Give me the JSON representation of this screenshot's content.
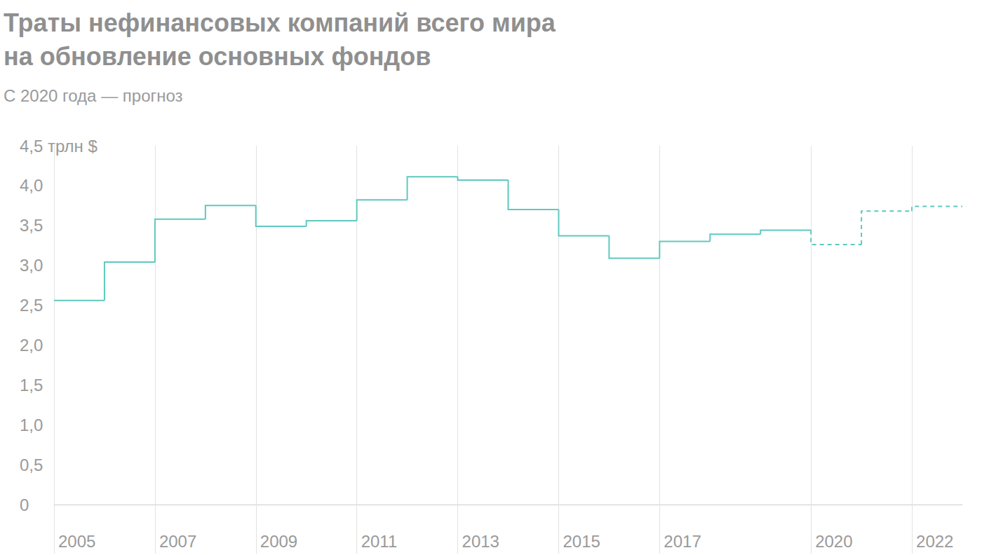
{
  "chart_data": {
    "type": "step",
    "title": "Траты нефинансовых компаний всего мира\nна обновление основных фондов",
    "subtitle": "С 2020 года — прогноз",
    "x": [
      2005,
      2006,
      2007,
      2008,
      2009,
      2010,
      2011,
      2012,
      2013,
      2014,
      2015,
      2016,
      2017,
      2018,
      2019,
      2020,
      2021,
      2022
    ],
    "series": [
      {
        "color": "#5ec9bf",
        "line_style": "solid",
        "values": [
          2.56,
          3.04,
          3.58,
          3.75,
          3.49,
          3.56,
          3.82,
          4.11,
          4.07,
          3.7,
          3.37,
          3.09,
          3.3,
          3.39,
          3.44,
          null,
          null,
          null
        ]
      },
      {
        "color": "#5ec9bf",
        "line_style": "dashed",
        "values": [
          null,
          null,
          null,
          null,
          null,
          null,
          null,
          null,
          null,
          null,
          null,
          null,
          null,
          null,
          null,
          3.26,
          3.68,
          3.74
        ]
      }
    ],
    "xlim": [
      2005,
      2023
    ],
    "xticks": [
      2005,
      2007,
      2009,
      2011,
      2013,
      2015,
      2017,
      2020,
      2022
    ],
    "ylim": [
      0,
      4.5
    ],
    "yticks": [
      0,
      {
        "value": 0.5,
        "label": "0,5"
      },
      {
        "value": 1,
        "label": "1,0"
      },
      {
        "value": 1.5,
        "label": "1,5"
      },
      {
        "value": 2,
        "label": "2,0"
      },
      {
        "value": 2.5,
        "label": "2,5"
      },
      {
        "value": 3,
        "label": "3,0"
      },
      {
        "value": 3.5,
        "label": "3,5"
      },
      {
        "value": 4,
        "label": "4,0"
      },
      {
        "value": 4.5,
        "label": "4,5 трлн $"
      }
    ],
    "grid": "x"
  }
}
